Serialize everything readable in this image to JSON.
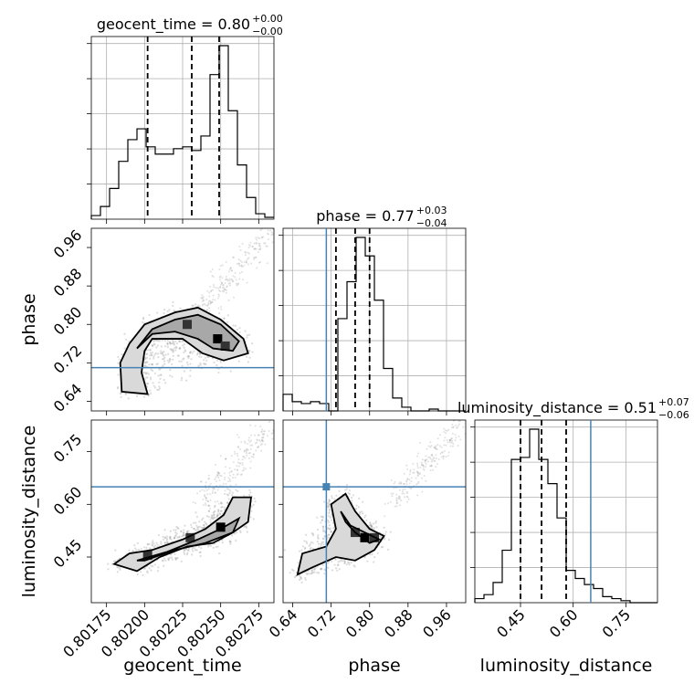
{
  "chart_data": {
    "type": "corner",
    "parameters": [
      {
        "name": "geocent_time",
        "title": {
          "label": "geocent_time",
          "median": "0.80",
          "plus": "+0.00",
          "minus": "−0.00"
        },
        "range": [
          0.80165,
          0.80285
        ],
        "ticks": [
          0.80175,
          0.802,
          0.80225,
          0.8025,
          0.80275
        ],
        "tick_labels": [
          "0.80175",
          "0.80200",
          "0.80225",
          "0.80250",
          "0.80275"
        ],
        "quantiles": [
          0.80202,
          0.80231,
          0.80249
        ],
        "truth": null,
        "histogram": {
          "edges_start": 0.80165,
          "bin_width": 6e-05,
          "counts": [
            0.02,
            0.07,
            0.17,
            0.32,
            0.44,
            0.5,
            0.4,
            0.36,
            0.36,
            0.39,
            0.4,
            0.38,
            0.46,
            0.8,
            0.96,
            0.6,
            0.3,
            0.12,
            0.03,
            0.01
          ]
        }
      },
      {
        "name": "phase",
        "title": {
          "label": "phase",
          "median": "0.77",
          "plus": "+0.03",
          "minus": "−0.04"
        },
        "range": [
          0.62,
          1.0
        ],
        "ticks": [
          0.64,
          0.72,
          0.8,
          0.88,
          0.96
        ],
        "tick_labels": [
          "0.64",
          "0.72",
          "0.80",
          "0.88",
          "0.96"
        ],
        "quantiles": [
          0.73,
          0.77,
          0.8
        ],
        "truth": 0.71,
        "histogram": {
          "edges_start": 0.62,
          "bin_width": 0.019,
          "counts": [
            0.09,
            0.05,
            0.04,
            0.05,
            0.04,
            0.0,
            0.5,
            0.7,
            0.94,
            0.84,
            0.6,
            0.23,
            0.07,
            0.02,
            0.0,
            0.0,
            0.01,
            0.0,
            0.0,
            0.0
          ]
        }
      },
      {
        "name": "luminosity_distance",
        "title": {
          "label": "luminosity_distance",
          "median": "0.51",
          "plus": "+0.07",
          "minus": "−0.06"
        },
        "range": [
          0.32,
          0.84
        ],
        "ticks": [
          0.45,
          0.6,
          0.75
        ],
        "tick_labels": [
          "0.45",
          "0.60",
          "0.75"
        ],
        "quantiles": [
          0.45,
          0.51,
          0.58
        ],
        "truth": 0.65,
        "histogram": {
          "edges_start": 0.32,
          "bin_width": 0.026,
          "counts": [
            0.02,
            0.04,
            0.1,
            0.26,
            0.71,
            0.72,
            0.86,
            0.71,
            0.59,
            0.42,
            0.16,
            0.12,
            0.09,
            0.07,
            0.03,
            0.02,
            0.01,
            0.0,
            0.0,
            0.0
          ]
        }
      }
    ],
    "pairs": [
      {
        "x": "geocent_time",
        "y": "phase",
        "contours": [
          [
            [
              0.80185,
              0.66
            ],
            [
              0.80184,
              0.72
            ],
            [
              0.8019,
              0.76
            ],
            [
              0.802,
              0.8
            ],
            [
              0.8022,
              0.825
            ],
            [
              0.80235,
              0.835
            ],
            [
              0.8025,
              0.81
            ],
            [
              0.80265,
              0.77
            ],
            [
              0.80268,
              0.74
            ],
            [
              0.80252,
              0.725
            ],
            [
              0.80238,
              0.74
            ],
            [
              0.80225,
              0.77
            ],
            [
              0.80205,
              0.77
            ],
            [
              0.802,
              0.745
            ],
            [
              0.80198,
              0.7
            ],
            [
              0.80202,
              0.655
            ],
            [
              0.80185,
              0.66
            ]
          ],
          [
            [
              0.80195,
              0.75
            ],
            [
              0.80205,
              0.79
            ],
            [
              0.8022,
              0.81
            ],
            [
              0.80235,
              0.82
            ],
            [
              0.8025,
              0.8
            ],
            [
              0.80262,
              0.765
            ],
            [
              0.80258,
              0.745
            ],
            [
              0.80245,
              0.75
            ],
            [
              0.80235,
              0.77
            ],
            [
              0.8022,
              0.785
            ],
            [
              0.80205,
              0.78
            ],
            [
              0.80195,
              0.75
            ]
          ]
        ],
        "density_peaks": [
          [
            0.80248,
            0.77
          ],
          [
            0.80253,
            0.755
          ],
          [
            0.80228,
            0.8
          ]
        ]
      },
      {
        "x": "geocent_time",
        "y": "luminosity_distance",
        "contours": [
          [
            [
              0.8018,
              0.43
            ],
            [
              0.8019,
              0.46
            ],
            [
              0.80205,
              0.47
            ],
            [
              0.80225,
              0.5
            ],
            [
              0.8024,
              0.53
            ],
            [
              0.80252,
              0.57
            ],
            [
              0.80258,
              0.62
            ],
            [
              0.8027,
              0.62
            ],
            [
              0.80268,
              0.55
            ],
            [
              0.80258,
              0.52
            ],
            [
              0.80245,
              0.49
            ],
            [
              0.80228,
              0.48
            ],
            [
              0.8021,
              0.45
            ],
            [
              0.80195,
              0.41
            ],
            [
              0.8018,
              0.43
            ]
          ],
          [
            [
              0.80195,
              0.44
            ],
            [
              0.80215,
              0.465
            ],
            [
              0.80235,
              0.5
            ],
            [
              0.8025,
              0.53
            ],
            [
              0.80262,
              0.56
            ],
            [
              0.80258,
              0.52
            ],
            [
              0.8024,
              0.49
            ],
            [
              0.8022,
              0.47
            ],
            [
              0.802,
              0.44
            ],
            [
              0.80195,
              0.44
            ]
          ]
        ],
        "density_peaks": [
          [
            0.8025,
            0.535
          ],
          [
            0.8023,
            0.505
          ],
          [
            0.80202,
            0.455
          ]
        ]
      },
      {
        "x": "phase",
        "y": "luminosity_distance",
        "truth_point": [
          0.71,
          0.65
        ],
        "contours": [
          [
            [
              0.65,
              0.4
            ],
            [
              0.66,
              0.46
            ],
            [
              0.71,
              0.48
            ],
            [
              0.73,
              0.53
            ],
            [
              0.72,
              0.6
            ],
            [
              0.75,
              0.63
            ],
            [
              0.77,
              0.58
            ],
            [
              0.8,
              0.53
            ],
            [
              0.83,
              0.51
            ],
            [
              0.81,
              0.47
            ],
            [
              0.77,
              0.44
            ],
            [
              0.73,
              0.45
            ],
            [
              0.68,
              0.42
            ],
            [
              0.65,
              0.4
            ]
          ],
          [
            [
              0.74,
              0.58
            ],
            [
              0.75,
              0.55
            ],
            [
              0.77,
              0.52
            ],
            [
              0.8,
              0.49
            ],
            [
              0.82,
              0.5
            ],
            [
              0.79,
              0.52
            ],
            [
              0.76,
              0.54
            ],
            [
              0.74,
              0.58
            ]
          ]
        ],
        "density_peaks": [
          [
            0.79,
            0.505
          ],
          [
            0.81,
            0.505
          ],
          [
            0.77,
            0.52
          ]
        ]
      }
    ],
    "colors": {
      "truth": "#4682b4",
      "lines": "#000000",
      "grid": "#b0b0b0",
      "samples": "#9a9a9a"
    }
  }
}
